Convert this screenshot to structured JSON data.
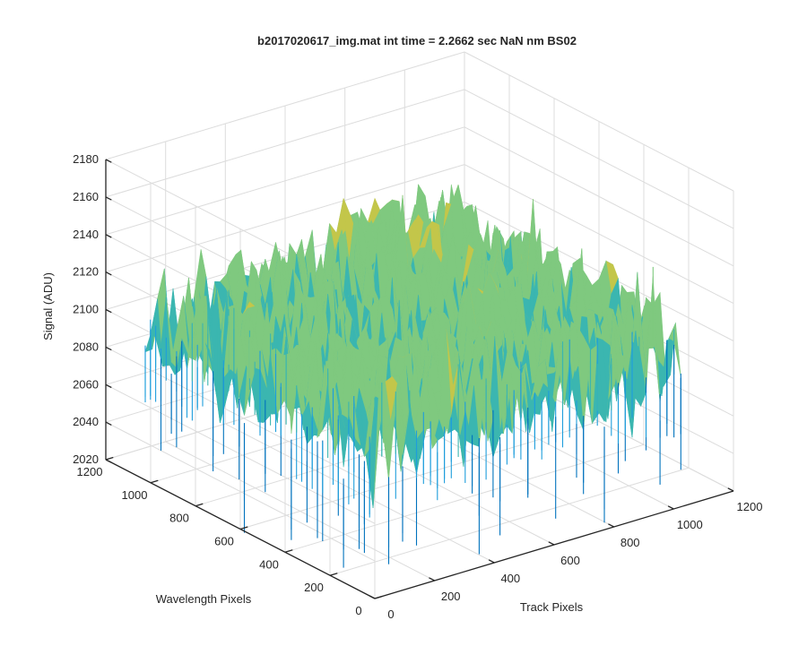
{
  "chart_data": {
    "type": "surface",
    "title": "b2017020617_img.mat int time = 2.2662 sec  NaN nm BS02",
    "xlabel": "Track Pixels",
    "ylabel": "Wavelength Pixels",
    "zlabel": "Signal (ADU)",
    "xlim": [
      0,
      1200
    ],
    "ylim": [
      0,
      1200
    ],
    "zlim": [
      2020,
      2180
    ],
    "xticks": [
      "0",
      "200",
      "400",
      "600",
      "800",
      "1000",
      "1200"
    ],
    "yticks": [
      "0",
      "200",
      "400",
      "600",
      "800",
      "1000",
      "1200"
    ],
    "zticks": [
      "2020",
      "2040",
      "2060",
      "2080",
      "2100",
      "2120",
      "2140",
      "2160",
      "2180"
    ],
    "surface_extent": {
      "x": [
        0,
        1024
      ],
      "y": [
        0,
        1024
      ]
    },
    "signal_mean_approx": 2105,
    "signal_min_approx": 2040,
    "signal_max_approx": 2165,
    "colormap": [
      "#0072bd",
      "#1e9edc",
      "#3bb6b0",
      "#7fc97f",
      "#c3c64a",
      "#ecc23a"
    ],
    "grid": true
  }
}
